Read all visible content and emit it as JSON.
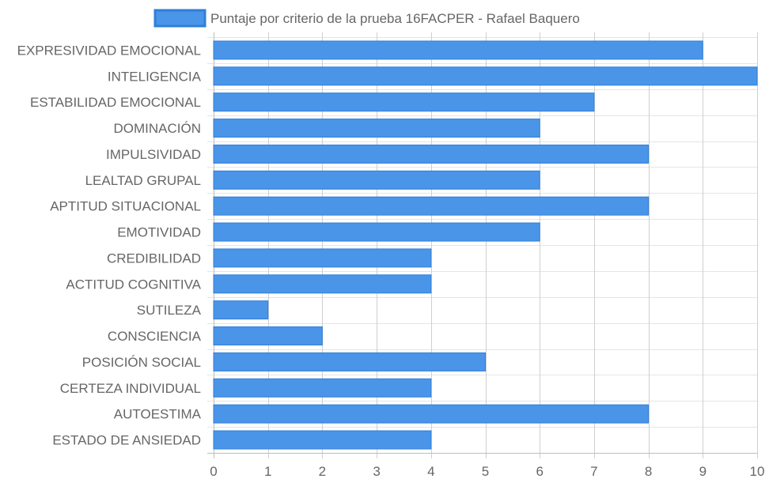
{
  "chart_data": {
    "type": "bar",
    "orientation": "horizontal",
    "categories": [
      "EXPRESIVIDAD EMOCIONAL",
      "INTELIGENCIA",
      "ESTABILIDAD EMOCIONAL",
      "DOMINACIÓN",
      "IMPULSIVIDAD",
      "LEALTAD GRUPAL",
      "APTITUD SITUACIONAL",
      "EMOTIVIDAD",
      "CREDIBILIDAD",
      "ACTITUD COGNITIVA",
      "SUTILEZA",
      "CONSCIENCIA",
      "POSICIÓN SOCIAL",
      "CERTEZA INDIVIDUAL",
      "AUTOESTIMA",
      "ESTADO DE ANSIEDAD"
    ],
    "series": [
      {
        "name": "Puntaje por criterio de la prueba 16FACPER - Rafael Baquero",
        "values": [
          9,
          10,
          7,
          6,
          8,
          6,
          8,
          6,
          4,
          4,
          1,
          2,
          5,
          4,
          8,
          4
        ],
        "color": "#4a95e8",
        "border_color": "#2f7fd9"
      }
    ],
    "xlim": [
      0,
      10
    ],
    "x_ticks": [
      "0",
      "1",
      "2",
      "3",
      "4",
      "5",
      "6",
      "7",
      "8",
      "9",
      "10"
    ],
    "grid": true,
    "legend": "top-center",
    "title": "",
    "xlabel": "",
    "ylabel": ""
  }
}
